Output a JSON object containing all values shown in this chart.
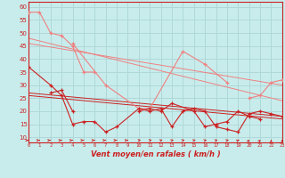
{
  "background_color": "#c8ecec",
  "grid_color": "#b0d8d8",
  "line_color_light": "#f08080",
  "line_color_dark": "#cc2020",
  "xlabel": "Vent moyen/en rafales ( km/h )",
  "yticks": [
    10,
    15,
    20,
    25,
    30,
    35,
    40,
    45,
    50,
    55,
    60
  ],
  "x_max": 23,
  "ylim_min": 8,
  "ylim_max": 62,
  "light_series": [
    {
      "x": [
        0,
        1,
        2,
        3,
        4,
        5,
        6
      ],
      "y": [
        58,
        58,
        50,
        49,
        45,
        35,
        35
      ]
    },
    {
      "x": [
        4,
        7,
        10,
        11,
        14,
        16,
        18
      ],
      "y": [
        46,
        30,
        21,
        21,
        43,
        38,
        31
      ]
    },
    {
      "x": [
        20,
        21,
        22,
        23
      ],
      "y": [
        25,
        26,
        31,
        32
      ]
    }
  ],
  "dark_series": [
    {
      "x": [
        0,
        2,
        3,
        4,
        5,
        6,
        7,
        8,
        10,
        11,
        12,
        13,
        14,
        15,
        16,
        17,
        18,
        19,
        20,
        21,
        22,
        23
      ],
      "y": [
        37,
        30,
        26,
        15,
        16,
        16,
        12,
        14,
        21,
        20,
        21,
        14,
        20,
        21,
        20,
        14,
        13,
        12,
        19,
        20,
        19,
        18
      ]
    },
    {
      "x": [
        2,
        3,
        4
      ],
      "y": [
        27,
        28,
        20
      ]
    },
    {
      "x": [
        10,
        11,
        12,
        13,
        15,
        16,
        17,
        18,
        19,
        20,
        21
      ],
      "y": [
        20,
        21,
        20,
        23,
        20,
        14,
        15,
        16,
        20,
        18,
        17
      ]
    }
  ],
  "trend_lines_light": [
    {
      "x": [
        0,
        23
      ],
      "y": [
        46,
        30
      ]
    },
    {
      "x": [
        0,
        23
      ],
      "y": [
        48,
        24
      ]
    }
  ],
  "trend_lines_dark": [
    {
      "x": [
        0,
        23
      ],
      "y": [
        27,
        18
      ]
    },
    {
      "x": [
        0,
        23
      ],
      "y": [
        26,
        17
      ]
    }
  ],
  "wind_arrow_angles_deg": [
    0,
    0,
    0,
    0,
    0,
    0,
    0,
    0,
    0,
    0,
    30,
    30,
    45,
    45,
    45,
    45,
    45,
    45,
    45,
    60,
    75,
    75,
    90,
    90
  ]
}
